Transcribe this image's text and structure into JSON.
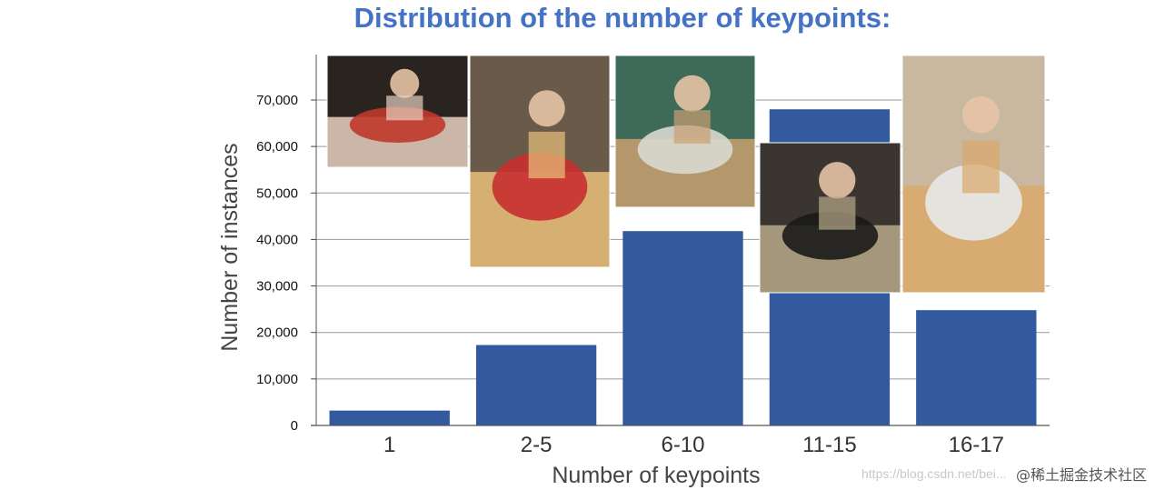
{
  "chart_data": {
    "type": "bar",
    "title": "Distribution of the number of keypoints:",
    "xlabel": "Number of keypoints",
    "ylabel": "Number of instances",
    "categories": [
      "1",
      "2-5",
      "6-10",
      "11-15",
      "16-17"
    ],
    "values": [
      3200,
      17300,
      41800,
      68000,
      24800
    ],
    "ylim": [
      0,
      70000
    ],
    "yticks": [
      0,
      10000,
      20000,
      30000,
      40000,
      50000,
      60000,
      70000
    ],
    "ytick_labels": [
      "0",
      "10,000",
      "20,000",
      "30,000",
      "40,000",
      "50,000",
      "60,000",
      "70,000"
    ],
    "grid": true,
    "bar_color": "#335a9f"
  },
  "photos": [
    {
      "category": "1",
      "subject": "pan-with-hand-photo",
      "colors": [
        "#2a2420",
        "#c0392b",
        "#e8d0c0"
      ]
    },
    {
      "category": "2-5",
      "subject": "child-holding-pizza-photo",
      "colors": [
        "#6a5a4a",
        "#c83030",
        "#e9c07a"
      ]
    },
    {
      "category": "6-10",
      "subject": "man-cutting-pizza-photo",
      "colors": [
        "#3e6a5a",
        "#d8d8d0",
        "#c9a070"
      ]
    },
    {
      "category": "11-15",
      "subject": "person-at-oven-photo",
      "colors": [
        "#3a3530",
        "#1a1a1a",
        "#b8a888"
      ]
    },
    {
      "category": "16-17",
      "subject": "man-in-kitchen-photo",
      "colors": [
        "#c8b8a0",
        "#e8e8e8",
        "#d9a86a"
      ]
    }
  ],
  "watermark": {
    "url": "https://blog.csdn.net/bei...",
    "site": "@稀土掘金技术社区"
  }
}
